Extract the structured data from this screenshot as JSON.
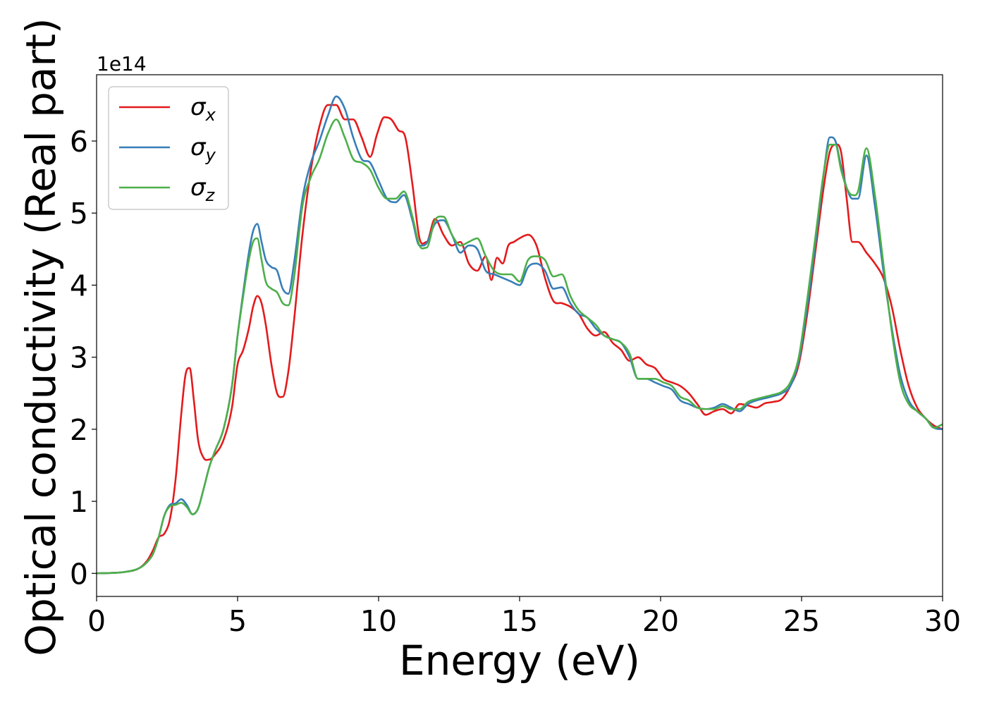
{
  "chart_data": {
    "type": "line",
    "xlabel": "Energy (eV)",
    "ylabel": "Optical conductivity (Real part)",
    "y_offset_text": "1e14",
    "y_scale": 100000000000000.0,
    "xlim": [
      0,
      30
    ],
    "ylim": [
      -0.32,
      6.92
    ],
    "xticks": [
      0,
      5,
      10,
      15,
      20,
      25,
      30
    ],
    "xtick_labels": [
      "0",
      "5",
      "10",
      "15",
      "20",
      "25",
      "30"
    ],
    "yticks": [
      0,
      1,
      2,
      3,
      4,
      5,
      6
    ],
    "ytick_labels": [
      "0",
      "1",
      "2",
      "3",
      "4",
      "5",
      "6"
    ],
    "grid": false,
    "legend": {
      "position": "upper-left",
      "entries": [
        {
          "symbol": "σ",
          "sub": "x"
        },
        {
          "symbol": "σ",
          "sub": "y"
        },
        {
          "symbol": "σ",
          "sub": "z"
        }
      ]
    },
    "series": [
      {
        "name": "σx",
        "color": "#e41a1c",
        "x": [
          0,
          1,
          1.5,
          1.8,
          2.0,
          2.2,
          2.4,
          2.6,
          2.8,
          3.0,
          3.15,
          3.3,
          3.45,
          3.6,
          3.8,
          4.0,
          4.2,
          4.5,
          4.8,
          5.0,
          5.2,
          5.4,
          5.55,
          5.7,
          5.85,
          6.0,
          6.2,
          6.4,
          6.6,
          6.8,
          7.0,
          7.3,
          7.6,
          7.9,
          8.2,
          8.5,
          8.8,
          9.1,
          9.4,
          9.7,
          9.95,
          10.2,
          10.45,
          10.7,
          10.95,
          11.2,
          11.45,
          11.7,
          12.0,
          12.3,
          12.6,
          12.9,
          13.2,
          13.5,
          13.8,
          14.0,
          14.2,
          14.4,
          14.6,
          14.8,
          15.0,
          15.3,
          15.6,
          15.9,
          16.2,
          16.5,
          16.8,
          17.1,
          17.4,
          17.7,
          18.0,
          18.3,
          18.6,
          18.9,
          19.2,
          19.5,
          19.8,
          20.1,
          20.4,
          20.7,
          21.0,
          21.3,
          21.6,
          21.9,
          22.2,
          22.5,
          22.8,
          23.1,
          23.4,
          23.7,
          24.0,
          24.3,
          24.6,
          24.9,
          25.2,
          25.5,
          25.8,
          26.0,
          26.2,
          26.4,
          26.6,
          26.8,
          27.0,
          27.3,
          27.6,
          27.9,
          28.2,
          28.5,
          28.8,
          29.1,
          29.4,
          29.7,
          30.0
        ],
        "values": [
          0,
          0.02,
          0.07,
          0.18,
          0.32,
          0.5,
          0.55,
          0.75,
          1.3,
          2.2,
          2.75,
          2.85,
          2.4,
          1.85,
          1.6,
          1.58,
          1.65,
          1.85,
          2.3,
          2.9,
          3.1,
          3.4,
          3.7,
          3.85,
          3.75,
          3.45,
          2.9,
          2.5,
          2.45,
          2.8,
          3.5,
          4.7,
          5.6,
          6.2,
          6.5,
          6.5,
          6.3,
          6.3,
          6.05,
          5.78,
          6.1,
          6.33,
          6.3,
          6.15,
          6.05,
          5.4,
          4.65,
          4.6,
          4.92,
          4.7,
          4.55,
          4.6,
          4.3,
          4.2,
          4.4,
          4.07,
          4.38,
          4.3,
          4.55,
          4.6,
          4.65,
          4.7,
          4.55,
          4.1,
          3.78,
          3.75,
          3.7,
          3.6,
          3.4,
          3.3,
          3.35,
          3.2,
          3.1,
          2.95,
          3.0,
          2.9,
          2.85,
          2.7,
          2.65,
          2.6,
          2.5,
          2.35,
          2.2,
          2.25,
          2.28,
          2.22,
          2.35,
          2.33,
          2.3,
          2.36,
          2.38,
          2.42,
          2.6,
          2.9,
          3.6,
          4.5,
          5.4,
          5.85,
          5.95,
          5.85,
          5.2,
          4.6,
          4.6,
          4.45,
          4.3,
          4.1,
          3.7,
          3.1,
          2.6,
          2.3,
          2.15,
          2.05,
          2.0
        ]
      },
      {
        "name": "σy",
        "color": "#377eb8",
        "x": [
          0,
          1,
          1.5,
          1.8,
          2.0,
          2.2,
          2.4,
          2.6,
          2.8,
          3.0,
          3.2,
          3.4,
          3.6,
          3.8,
          4.0,
          4.2,
          4.5,
          4.8,
          5.0,
          5.2,
          5.4,
          5.55,
          5.7,
          5.85,
          6.0,
          6.2,
          6.4,
          6.6,
          6.8,
          7.0,
          7.3,
          7.6,
          7.9,
          8.2,
          8.5,
          8.8,
          9.1,
          9.4,
          9.7,
          10.0,
          10.3,
          10.6,
          10.9,
          11.2,
          11.45,
          11.7,
          12.0,
          12.3,
          12.6,
          12.9,
          13.2,
          13.5,
          13.8,
          14.1,
          14.4,
          14.7,
          15.0,
          15.3,
          15.6,
          15.9,
          16.2,
          16.5,
          16.8,
          17.1,
          17.4,
          17.7,
          18.0,
          18.3,
          18.6,
          18.9,
          19.2,
          19.5,
          19.8,
          20.1,
          20.4,
          20.7,
          21.0,
          21.3,
          21.6,
          21.9,
          22.2,
          22.5,
          22.8,
          23.1,
          23.4,
          23.7,
          24.0,
          24.3,
          24.6,
          24.9,
          25.2,
          25.5,
          25.8,
          26.0,
          26.2,
          26.4,
          26.6,
          26.8,
          27.0,
          27.3,
          27.6,
          27.9,
          28.2,
          28.5,
          28.8,
          29.1,
          29.4,
          29.7,
          30.0
        ],
        "values": [
          0,
          0.02,
          0.07,
          0.16,
          0.27,
          0.5,
          0.8,
          0.95,
          0.97,
          1.03,
          0.95,
          0.82,
          0.9,
          1.18,
          1.48,
          1.7,
          2.0,
          2.6,
          3.3,
          3.9,
          4.45,
          4.75,
          4.85,
          4.6,
          4.35,
          4.25,
          4.2,
          3.95,
          3.88,
          4.3,
          5.2,
          5.7,
          6.0,
          6.35,
          6.62,
          6.45,
          6.05,
          5.75,
          5.7,
          5.45,
          5.2,
          5.15,
          5.25,
          4.9,
          4.55,
          4.58,
          4.85,
          4.9,
          4.7,
          4.45,
          4.55,
          4.5,
          4.2,
          4.15,
          4.1,
          4.05,
          4.0,
          4.25,
          4.3,
          4.2,
          3.95,
          3.97,
          3.75,
          3.6,
          3.55,
          3.4,
          3.3,
          3.25,
          3.2,
          3.0,
          2.7,
          2.7,
          2.65,
          2.6,
          2.55,
          2.4,
          2.35,
          2.3,
          2.28,
          2.3,
          2.35,
          2.3,
          2.25,
          2.35,
          2.4,
          2.43,
          2.46,
          2.5,
          2.6,
          2.95,
          3.7,
          4.6,
          5.6,
          6.05,
          6.0,
          5.65,
          5.35,
          5.2,
          5.2,
          5.8,
          5.1,
          4.2,
          3.4,
          2.75,
          2.4,
          2.25,
          2.15,
          2.02,
          2.0
        ]
      },
      {
        "name": "σz",
        "color": "#4daf4a",
        "x": [
          0,
          1,
          1.5,
          1.8,
          2.0,
          2.2,
          2.4,
          2.6,
          2.8,
          3.0,
          3.2,
          3.4,
          3.6,
          3.8,
          4.0,
          4.2,
          4.5,
          4.8,
          5.0,
          5.2,
          5.4,
          5.55,
          5.7,
          5.85,
          6.0,
          6.2,
          6.4,
          6.6,
          6.8,
          7.0,
          7.3,
          7.6,
          7.9,
          8.2,
          8.5,
          8.8,
          9.1,
          9.4,
          9.7,
          10.0,
          10.3,
          10.6,
          10.9,
          11.2,
          11.45,
          11.7,
          12.0,
          12.3,
          12.6,
          12.9,
          13.2,
          13.5,
          13.8,
          14.1,
          14.4,
          14.7,
          15.0,
          15.3,
          15.6,
          15.9,
          16.2,
          16.5,
          16.8,
          17.1,
          17.4,
          17.7,
          18.0,
          18.3,
          18.6,
          18.9,
          19.2,
          19.5,
          19.8,
          20.1,
          20.4,
          20.7,
          21.0,
          21.3,
          21.6,
          21.9,
          22.2,
          22.5,
          22.8,
          23.1,
          23.4,
          23.7,
          24.0,
          24.3,
          24.6,
          24.9,
          25.2,
          25.5,
          25.8,
          26.0,
          26.2,
          26.4,
          26.6,
          26.8,
          27.0,
          27.3,
          27.6,
          27.9,
          28.2,
          28.5,
          28.8,
          29.1,
          29.4,
          29.7,
          30.0
        ],
        "values": [
          0,
          0.02,
          0.07,
          0.16,
          0.27,
          0.5,
          0.8,
          0.93,
          0.95,
          0.98,
          0.92,
          0.82,
          0.9,
          1.18,
          1.48,
          1.7,
          2.0,
          2.6,
          3.3,
          3.85,
          4.35,
          4.6,
          4.65,
          4.35,
          4.05,
          3.95,
          3.9,
          3.75,
          3.72,
          4.1,
          5.1,
          5.5,
          5.75,
          6.1,
          6.3,
          6.05,
          5.75,
          5.7,
          5.6,
          5.35,
          5.2,
          5.2,
          5.3,
          4.95,
          4.55,
          4.52,
          4.9,
          4.95,
          4.7,
          4.55,
          4.6,
          4.65,
          4.4,
          4.2,
          4.15,
          4.15,
          4.05,
          4.35,
          4.4,
          4.35,
          4.12,
          4.15,
          3.85,
          3.65,
          3.55,
          3.45,
          3.3,
          3.25,
          3.2,
          3.05,
          2.7,
          2.7,
          2.7,
          2.65,
          2.6,
          2.45,
          2.4,
          2.3,
          2.28,
          2.28,
          2.32,
          2.28,
          2.28,
          2.38,
          2.42,
          2.45,
          2.48,
          2.52,
          2.65,
          3.0,
          3.8,
          4.7,
          5.6,
          5.95,
          5.95,
          5.6,
          5.35,
          5.25,
          5.3,
          5.9,
          5.25,
          4.3,
          3.35,
          2.65,
          2.35,
          2.25,
          2.15,
          2.02,
          2.07
        ]
      }
    ]
  }
}
